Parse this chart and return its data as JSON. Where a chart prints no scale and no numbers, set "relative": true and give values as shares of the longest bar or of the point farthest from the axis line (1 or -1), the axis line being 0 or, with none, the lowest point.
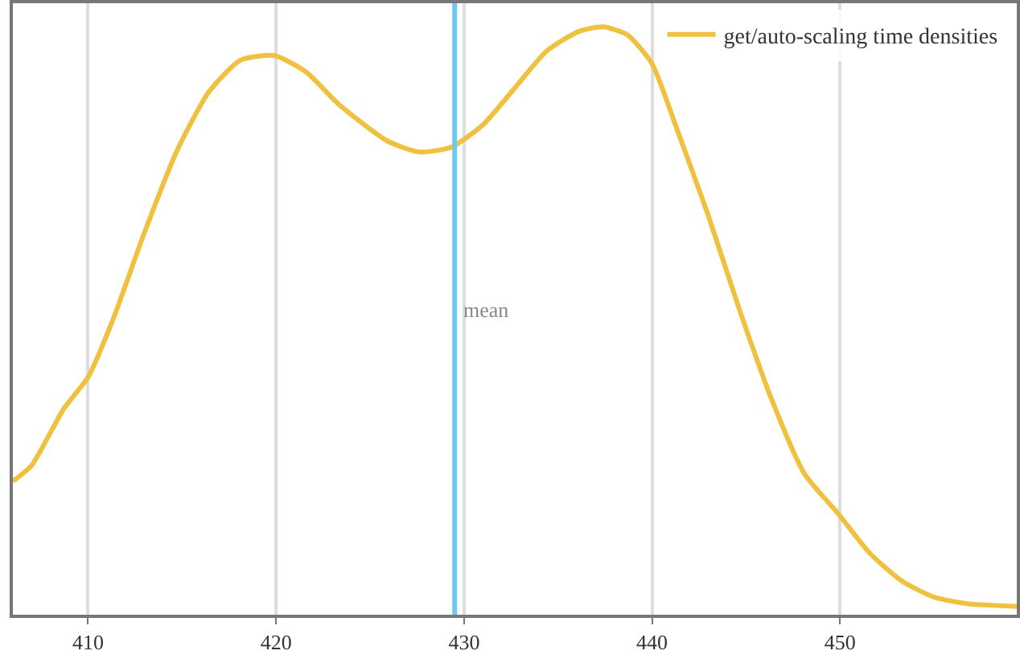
{
  "chart_data": {
    "type": "line",
    "relative": true,
    "x": [
      406.0,
      407.0,
      408.7,
      410.0,
      411.3,
      413.0,
      414.7,
      416.4,
      418.1,
      419.9,
      421.6,
      423.3,
      425.9,
      427.6,
      429.3,
      431.0,
      432.7,
      434.4,
      436.1,
      437.4,
      438.7,
      440.0,
      441.3,
      443.0,
      444.7,
      446.4,
      448.1,
      449.9,
      451.6,
      453.3,
      455.0,
      456.7,
      459.4
    ],
    "series": [
      {
        "name": "get/auto-scaling time densities",
        "color": "#f0c040",
        "values": [
          0.227,
          0.254,
          0.35,
          0.404,
          0.5,
          0.65,
          0.787,
          0.888,
          0.943,
          0.951,
          0.923,
          0.869,
          0.806,
          0.787,
          0.795,
          0.833,
          0.896,
          0.959,
          0.992,
          1.0,
          0.986,
          0.937,
          0.828,
          0.678,
          0.514,
          0.363,
          0.24,
          0.172,
          0.104,
          0.057,
          0.03,
          0.019,
          0.014
        ]
      }
    ],
    "xlim": [
      406.0,
      459.4
    ],
    "xticks": [
      410,
      420,
      430,
      440,
      450
    ],
    "ref_lines": [
      {
        "axis": "x",
        "value": 429.5,
        "label": "mean",
        "color": "#70c8ec"
      }
    ],
    "grid": "x",
    "legend": "top right",
    "marker": "none",
    "line_style": "solid"
  }
}
